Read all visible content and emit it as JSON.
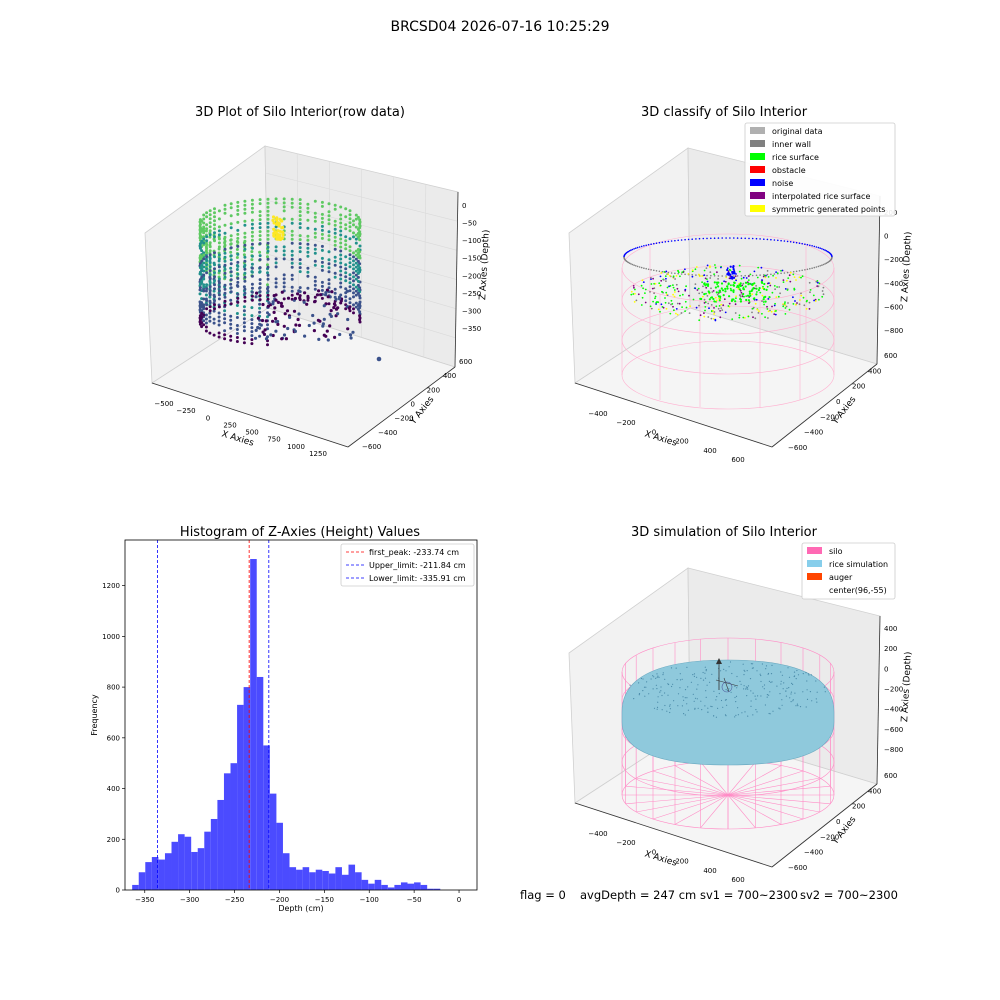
{
  "suptitle": "BRCSD04 2026-07-16 10:25:29",
  "chart_data": [
    {
      "type": "scatter",
      "subtype": "3d",
      "title": "3D Plot of Silo Interior(row data)",
      "xlabel": "X Axies",
      "ylabel": "Y Axies",
      "zlabel": "Z Axies (Depth)",
      "xticks": [
        "−500",
        "−250",
        "0",
        "250",
        "500",
        "750",
        "1000",
        "1250"
      ],
      "yticks": [
        "−600",
        "−400",
        "−200",
        "0",
        "200",
        "400",
        "600"
      ],
      "zticks": [
        "−350",
        "−300",
        "−250",
        "−200",
        "−150",
        "−100",
        "−50",
        "0"
      ],
      "xlim": [
        -600,
        1350
      ],
      "ylim": [
        -700,
        700
      ],
      "zlim": [
        -380,
        10
      ],
      "colormap": "viridis",
      "grid": true
    },
    {
      "type": "scatter",
      "subtype": "3d",
      "title": "3D classify of Silo Interior",
      "xlabel": "X Axies",
      "ylabel": "Y Axies",
      "zlabel": "Z Axies (Depth)",
      "xticks": [
        "−400",
        "−200",
        "0",
        "200",
        "400",
        "600"
      ],
      "yticks": [
        "−600",
        "−400",
        "−200",
        "0",
        "200",
        "400",
        "600"
      ],
      "zticks": [
        "−800",
        "−600",
        "−400",
        "−200",
        "0",
        "200"
      ],
      "legend_position": "top-right",
      "legend": [
        {
          "label": "original data",
          "color": "#b0b0b0"
        },
        {
          "label": "inner wall",
          "color": "#808080"
        },
        {
          "label": "rice surface",
          "color": "#00ff00"
        },
        {
          "label": "obstacle",
          "color": "#ff0000"
        },
        {
          "label": "noise",
          "color": "#0000ff"
        },
        {
          "label": "interpolated rice surface",
          "color": "#800080"
        },
        {
          "label": "symmetric generated points",
          "color": "#ffff00"
        }
      ],
      "grid": true
    },
    {
      "type": "bar",
      "subtype": "histogram",
      "title": "Histogram of Z-Axies (Height) Values",
      "xlabel": "Depth (cm)",
      "ylabel": "Frequency",
      "xlim": [
        -372,
        20
      ],
      "ylim": [
        0,
        1380
      ],
      "xticks": [
        -350,
        -300,
        -250,
        -200,
        -150,
        -100,
        -50,
        0
      ],
      "yticks": [
        0,
        200,
        400,
        600,
        800,
        1000,
        1200
      ],
      "bin_start": -364,
      "bin_width": 7.3,
      "values": [
        20,
        70,
        110,
        130,
        120,
        145,
        190,
        220,
        210,
        150,
        165,
        230,
        280,
        355,
        460,
        500,
        730,
        800,
        1305,
        840,
        570,
        380,
        265,
        145,
        90,
        80,
        90,
        70,
        80,
        75,
        65,
        90,
        60,
        100,
        70,
        40,
        25,
        40,
        20,
        10,
        20,
        30,
        25,
        30,
        20,
        5,
        5
      ],
      "bar_color": "#4b4bff",
      "vlines": [
        {
          "label": "first_peak: -233.74 cm",
          "x": -233.74,
          "color": "#ff0000"
        },
        {
          "label": "Upper_limit: -211.84 cm",
          "x": -211.84,
          "color": "#0000ff"
        },
        {
          "label": "Lower_limit: -335.91 cm",
          "x": -335.91,
          "color": "#0000ff"
        }
      ],
      "legend_position": "top-right",
      "grid": false
    },
    {
      "type": "scatter",
      "subtype": "3d",
      "title": "3D simulation of Silo Interior",
      "xlabel": "X Axies",
      "ylabel": "Y Axies",
      "zlabel": "Z Axies (Depth)",
      "xticks": [
        "−400",
        "−200",
        "0",
        "200",
        "400",
        "600"
      ],
      "yticks": [
        "−600",
        "−400",
        "−200",
        "0",
        "200",
        "400",
        "600"
      ],
      "zticks": [
        "−800",
        "−600",
        "−400",
        "−200",
        "0",
        "200",
        "400"
      ],
      "legend_position": "top-right",
      "legend": [
        {
          "label": "silo",
          "color": "#ff69b4"
        },
        {
          "label": "rice simulation",
          "color": "#87ceeb"
        },
        {
          "label": "auger",
          "color": "#ff4500"
        },
        {
          "label": "center(96,-55)",
          "color": "none"
        }
      ],
      "grid": true
    }
  ],
  "status": {
    "flag": "flag = 0",
    "avg_depth": "avgDepth = 247 cm",
    "sv1": "sv1 = 700~2300",
    "sv2": "sv2 = 700~2300"
  }
}
